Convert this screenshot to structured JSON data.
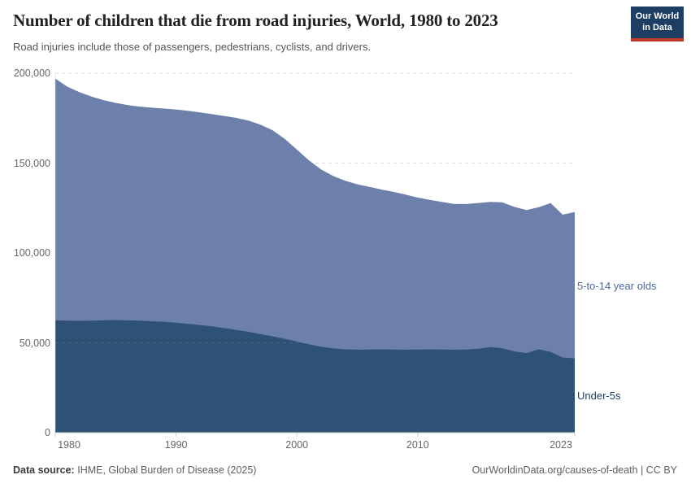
{
  "header": {
    "title": "Number of children that die from road injuries, World, 1980 to 2023",
    "subtitle": "Road injuries include those of passengers, pedestrians, cyclists, and drivers."
  },
  "logo": {
    "line1": "Our World",
    "line2": "in Data",
    "bg_color": "#1d3d63",
    "accent_color": "#c0392b"
  },
  "footer": {
    "data_source_label": "Data source:",
    "data_source_value": "IHME, Global Burden of Disease (2025)",
    "credit": "OurWorldinData.org/causes-of-death | CC BY"
  },
  "chart_data": {
    "type": "area",
    "stacked": true,
    "title": "Number of children that die from road injuries, World, 1980 to 2023",
    "xlabel": "",
    "ylabel": "",
    "ylim": [
      0,
      200000
    ],
    "grid": "horizontal-dashed",
    "legend_position": "right-edge-labels",
    "years": [
      1980,
      1981,
      1982,
      1983,
      1984,
      1985,
      1986,
      1987,
      1988,
      1989,
      1990,
      1991,
      1992,
      1993,
      1994,
      1995,
      1996,
      1997,
      1998,
      1999,
      2000,
      2001,
      2002,
      2003,
      2004,
      2005,
      2006,
      2007,
      2008,
      2009,
      2010,
      2011,
      2012,
      2013,
      2014,
      2015,
      2016,
      2017,
      2018,
      2019,
      2020,
      2021,
      2022,
      2023
    ],
    "series": [
      {
        "name": "Under-5s",
        "color": "#2e5276",
        "label_color": "#1d4063",
        "values": [
          62500,
          62300,
          62200,
          62300,
          62500,
          62700,
          62500,
          62300,
          62000,
          61700,
          61200,
          60600,
          59900,
          59100,
          58200,
          57200,
          56100,
          54900,
          53600,
          52200,
          50700,
          49200,
          47800,
          46900,
          46400,
          46200,
          46300,
          46400,
          46300,
          46200,
          46300,
          46400,
          46300,
          46200,
          46300,
          46700,
          47600,
          47000,
          45200,
          44300,
          46400,
          45000,
          41800,
          41400
        ]
      },
      {
        "name": "5-to-14 year olds",
        "color": "#6d80ab",
        "label_color": "#4d6a9d",
        "values": [
          134500,
          130200,
          127300,
          124700,
          122500,
          120800,
          119700,
          119100,
          118800,
          118600,
          118600,
          118500,
          118300,
          118100,
          118000,
          117900,
          117500,
          116400,
          114600,
          111300,
          106800,
          102300,
          98700,
          95900,
          93800,
          92000,
          90500,
          88900,
          87700,
          86300,
          84500,
          83100,
          82100,
          81100,
          80900,
          81100,
          80800,
          81200,
          80400,
          79600,
          79000,
          82800,
          79500,
          81300
        ]
      }
    ],
    "yticks": [
      {
        "value": 0,
        "label": "0"
      },
      {
        "value": 50000,
        "label": "50,000"
      },
      {
        "value": 100000,
        "label": "100,000"
      },
      {
        "value": 150000,
        "label": "150,000"
      },
      {
        "value": 200000,
        "label": "200,000"
      }
    ],
    "xticks": [
      {
        "value": 1980,
        "label": "1980"
      },
      {
        "value": 1990,
        "label": "1990"
      },
      {
        "value": 2000,
        "label": "2000"
      },
      {
        "value": 2010,
        "label": "2010"
      },
      {
        "value": 2023,
        "label": "2023"
      }
    ]
  }
}
